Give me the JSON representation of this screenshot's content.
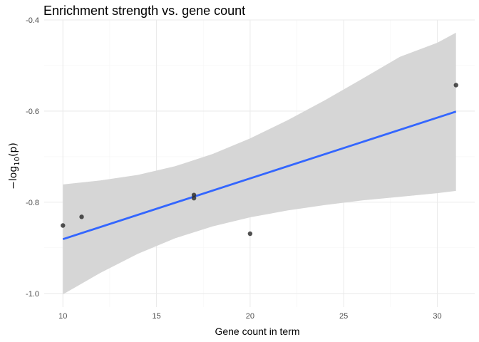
{
  "chart_data": {
    "type": "scatter",
    "title": "Enrichment strength vs. gene count",
    "xlabel": "Gene count in term",
    "ylabel": {
      "prefix": "−log",
      "sub": "10",
      "suffix": "(p)"
    },
    "xlim": [
      9.0,
      32.0
    ],
    "ylim": [
      -1.03,
      -0.4
    ],
    "x_ticks": [
      10,
      15,
      20,
      25,
      30
    ],
    "x_tick_labels": [
      "10",
      "15",
      "20",
      "25",
      "30"
    ],
    "y_ticks": [
      -1.0,
      -0.8,
      -0.6,
      -0.4
    ],
    "y_tick_labels": [
      "-1.0",
      "-0.8",
      "-0.6",
      "-0.4"
    ],
    "grid": true,
    "points": [
      {
        "x": 10,
        "y": -0.851
      },
      {
        "x": 11,
        "y": -0.832
      },
      {
        "x": 17,
        "y": -0.784
      },
      {
        "x": 17,
        "y": -0.791
      },
      {
        "x": 20,
        "y": -0.869
      },
      {
        "x": 31,
        "y": -0.543
      }
    ],
    "fit": {
      "method": "linear",
      "x": [
        10,
        31
      ],
      "y": [
        -0.881,
        -0.601
      ],
      "confidence_band": {
        "x": [
          10,
          12,
          14,
          16,
          18,
          20,
          22,
          24,
          26,
          28,
          30,
          31
        ],
        "lower": [
          -1.002,
          -0.955,
          -0.913,
          -0.879,
          -0.853,
          -0.833,
          -0.818,
          -0.806,
          -0.796,
          -0.788,
          -0.78,
          -0.775
        ],
        "upper": [
          -0.761,
          -0.752,
          -0.74,
          -0.721,
          -0.694,
          -0.66,
          -0.62,
          -0.576,
          -0.529,
          -0.481,
          -0.45,
          -0.428
        ]
      }
    },
    "colors": {
      "line": "#3366ff",
      "band": "#d6d6d6",
      "point": "#333333"
    }
  }
}
